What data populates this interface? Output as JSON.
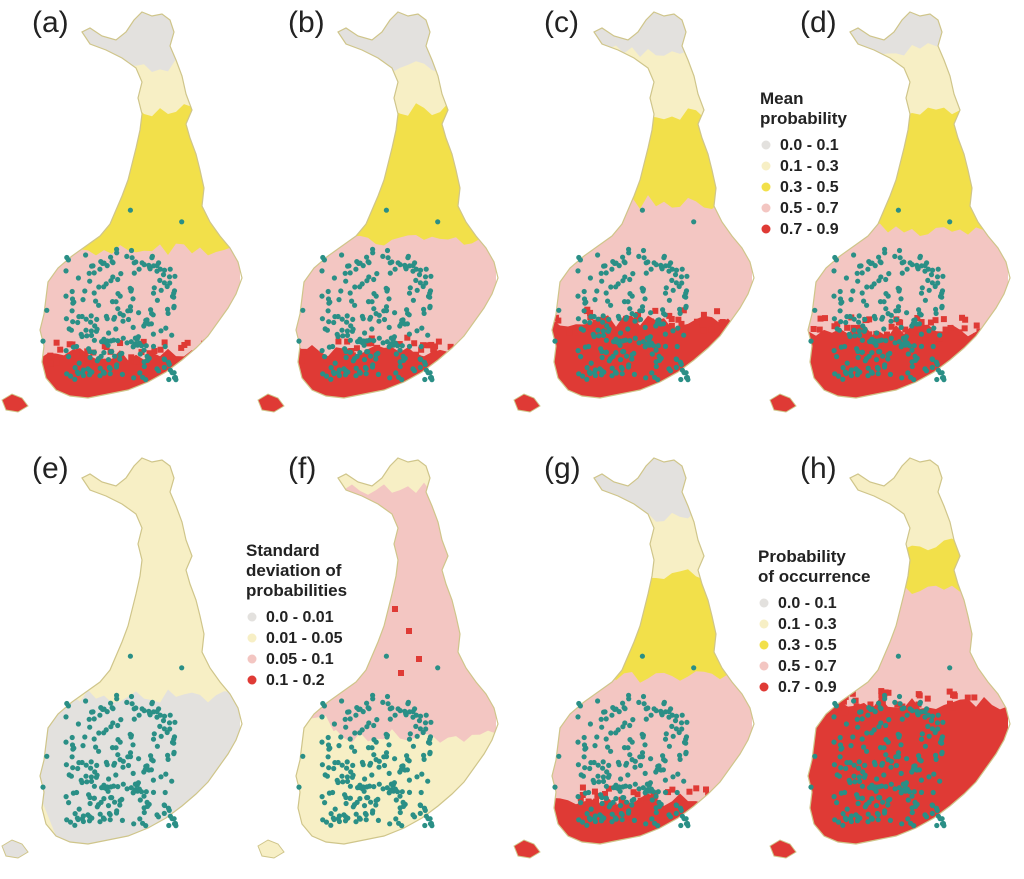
{
  "colors": {
    "c0": "#e3e1de",
    "c1": "#f7efc5",
    "c2": "#f2e04a",
    "c3": "#f3c6c2",
    "c4": "#df3a35",
    "border": "#cfc58a",
    "points": "#2a8f86"
  },
  "panels": [
    {
      "label": "(a)",
      "zones": [
        "c0",
        "c1",
        "c2",
        "c3",
        "c4"
      ],
      "cut": [
        0.14,
        0.25,
        0.6,
        0.86
      ],
      "pattern": "mean"
    },
    {
      "label": "(b)",
      "zones": [
        "c0",
        "c1",
        "c2",
        "c3",
        "c4"
      ],
      "cut": [
        0.14,
        0.25,
        0.58,
        0.85
      ],
      "pattern": "mean"
    },
    {
      "label": "(c)",
      "zones": [
        "c0",
        "c1",
        "c2",
        "c3",
        "c4"
      ],
      "cut": [
        0.1,
        0.26,
        0.48,
        0.78
      ],
      "pattern": "mean"
    },
    {
      "label": "(d)",
      "zones": [
        "c0",
        "c1",
        "c2",
        "c3",
        "c4"
      ],
      "cut": [
        0.1,
        0.25,
        0.55,
        0.8
      ],
      "pattern": "mean"
    },
    {
      "label": "(e)",
      "zones": [
        "c1",
        "c1",
        "c0",
        "c0",
        "c0"
      ],
      "cut": [
        0.3,
        0.6,
        0.65,
        0.95
      ],
      "pattern": "sd_e"
    },
    {
      "label": "(f)",
      "zones": [
        "c1",
        "c3",
        "c3",
        "c1",
        "c1"
      ],
      "cut": [
        0.08,
        0.2,
        0.7,
        0.9
      ],
      "pattern": "sd_f"
    },
    {
      "label": "(g)",
      "zones": [
        "c0",
        "c1",
        "c2",
        "c3",
        "c4"
      ],
      "cut": [
        0.15,
        0.3,
        0.55,
        0.86
      ],
      "pattern": "mean"
    },
    {
      "label": "(h)",
      "zones": [
        "c1",
        "c1",
        "c2",
        "c3",
        "c4"
      ],
      "cut": [
        0.08,
        0.22,
        0.33,
        0.62
      ],
      "pattern": "mean"
    }
  ],
  "legends": [
    {
      "title": [
        "Mean",
        "probability"
      ],
      "items": [
        {
          "label": "0.0 - 0.1",
          "color": "#e3e1de"
        },
        {
          "label": "0.1 - 0.3",
          "color": "#f7efc5"
        },
        {
          "label": "0.3 - 0.5",
          "color": "#f2e04a"
        },
        {
          "label": "0.5 - 0.7",
          "color": "#f3c6c2"
        },
        {
          "label": "0.7 - 0.9",
          "color": "#df3a35"
        }
      ]
    },
    {
      "title": [
        "Standard",
        "deviation of",
        "probabilities"
      ],
      "items": [
        {
          "label": "0.0 - 0.01",
          "color": "#e3e1de"
        },
        {
          "label": "0.01 - 0.05",
          "color": "#f7efc5"
        },
        {
          "label": "0.05 - 0.1",
          "color": "#f3c6c2"
        },
        {
          "label": "0.1 - 0.2",
          "color": "#df3a35"
        }
      ]
    },
    {
      "title": [
        "Probability",
        "of occurrence"
      ],
      "items": [
        {
          "label": "0.0 - 0.1",
          "color": "#e3e1de"
        },
        {
          "label": "0.1 - 0.3",
          "color": "#f7efc5"
        },
        {
          "label": "0.3 - 0.5",
          "color": "#f2e04a"
        },
        {
          "label": "0.5 - 0.7",
          "color": "#f3c6c2"
        },
        {
          "label": "0.7 - 0.9",
          "color": "#df3a35"
        }
      ]
    }
  ]
}
